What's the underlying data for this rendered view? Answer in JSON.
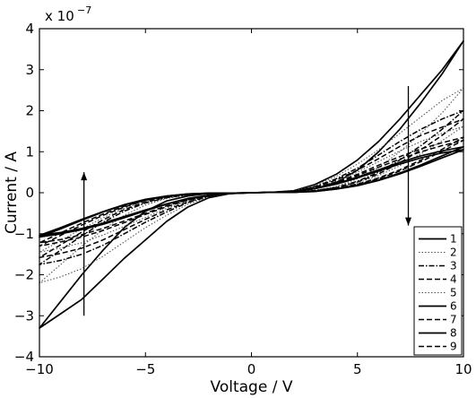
{
  "chart_data": {
    "type": "line",
    "title": "",
    "xlabel": "Voltage / V",
    "ylabel": "Current / A",
    "scale_base": "x 10",
    "scale_exponent": "−7",
    "xlim": [
      -10,
      10
    ],
    "ylim": [
      -4,
      4
    ],
    "xticks": [
      -10,
      -5,
      0,
      5,
      10
    ],
    "yticks": [
      -4,
      -3,
      -2,
      -1,
      0,
      1,
      2,
      3,
      4
    ],
    "xtick_labels": [
      "−10",
      "−5",
      "0",
      "5",
      "10"
    ],
    "ytick_labels": [
      "−4",
      "−3",
      "−2",
      "−1",
      "0",
      "1",
      "2",
      "3",
      "4"
    ],
    "grid": false,
    "legend_position": "bottom-right",
    "arrows": [
      {
        "x": 7.4,
        "y_from": 2.6,
        "y_to": -0.8,
        "direction": "down"
      },
      {
        "x": -7.9,
        "y_from": -3.0,
        "y_to": 0.5,
        "direction": "up"
      }
    ],
    "series": [
      {
        "name": "1",
        "style": "solid",
        "xpos": [
          0,
          1,
          2,
          3,
          4,
          5,
          6,
          7,
          8,
          9,
          10
        ],
        "xrev": [
          10,
          9,
          8,
          7,
          6,
          5,
          4,
          3,
          2,
          1,
          0
        ],
        "up": [
          0.0,
          0.01,
          0.05,
          0.2,
          0.45,
          0.8,
          1.25,
          1.8,
          2.4,
          3.0,
          3.7
        ],
        "down": [
          3.7,
          2.9,
          2.2,
          1.55,
          1.0,
          0.55,
          0.25,
          0.1,
          0.03,
          0.01,
          0.0
        ],
        "xneg": [
          0,
          -1,
          -2,
          -3,
          -4,
          -5,
          -6,
          -7,
          -8,
          -9,
          -10
        ],
        "xnegrev": [
          -10,
          -9,
          -8,
          -7,
          -6,
          -5,
          -4,
          -3,
          -2,
          -1,
          0
        ],
        "nup": [
          0.0,
          -0.02,
          -0.12,
          -0.35,
          -0.7,
          -1.15,
          -1.6,
          -2.1,
          -2.6,
          -2.95,
          -3.3
        ],
        "ndown": [
          -3.3,
          -2.65,
          -2.0,
          -1.4,
          -0.85,
          -0.45,
          -0.2,
          -0.08,
          -0.02,
          -0.01,
          0.0
        ]
      },
      {
        "name": "2",
        "style": "dotted",
        "xpos": [
          0,
          1,
          2,
          3,
          4,
          5,
          6,
          7,
          8,
          9,
          10
        ],
        "xrev": [
          10,
          9,
          8,
          7,
          6,
          5,
          4,
          3,
          2,
          1,
          0
        ],
        "up": [
          0.0,
          0.01,
          0.05,
          0.18,
          0.4,
          0.7,
          1.05,
          1.45,
          1.85,
          2.25,
          2.55
        ],
        "down": [
          2.55,
          1.95,
          1.45,
          1.0,
          0.62,
          0.34,
          0.15,
          0.06,
          0.02,
          0.01,
          0.0
        ],
        "xneg": [
          0,
          -1,
          -2,
          -3,
          -4,
          -5,
          -6,
          -7,
          -8,
          -9,
          -10
        ],
        "xnegrev": [
          -10,
          -9,
          -8,
          -7,
          -6,
          -5,
          -4,
          -3,
          -2,
          -1,
          0
        ],
        "nup": [
          0.0,
          -0.02,
          -0.1,
          -0.28,
          -0.55,
          -0.85,
          -1.2,
          -1.55,
          -1.85,
          -2.05,
          -2.2
        ],
        "ndown": [
          -2.2,
          -1.75,
          -1.3,
          -0.9,
          -0.55,
          -0.3,
          -0.14,
          -0.06,
          -0.02,
          -0.01,
          0.0
        ]
      },
      {
        "name": "3",
        "style": "dashdot",
        "xpos": [
          0,
          1,
          2,
          3,
          4,
          5,
          6,
          7,
          8,
          9,
          10
        ],
        "xrev": [
          10,
          9,
          8,
          7,
          6,
          5,
          4,
          3,
          2,
          1,
          0
        ],
        "up": [
          0.0,
          0.01,
          0.04,
          0.15,
          0.34,
          0.6,
          0.92,
          1.25,
          1.55,
          1.8,
          2.0
        ],
        "down": [
          2.0,
          1.55,
          1.15,
          0.8,
          0.5,
          0.28,
          0.13,
          0.05,
          0.02,
          0.01,
          0.0
        ],
        "xneg": [
          0,
          -1,
          -2,
          -3,
          -4,
          -5,
          -6,
          -7,
          -8,
          -9,
          -10
        ],
        "xnegrev": [
          -10,
          -9,
          -8,
          -7,
          -6,
          -5,
          -4,
          -3,
          -2,
          -1,
          0
        ],
        "nup": [
          0.0,
          -0.02,
          -0.09,
          -0.24,
          -0.47,
          -0.72,
          -1.0,
          -1.28,
          -1.5,
          -1.65,
          -1.75
        ],
        "ndown": [
          -1.75,
          -1.4,
          -1.05,
          -0.72,
          -0.45,
          -0.25,
          -0.12,
          -0.05,
          -0.02,
          -0.01,
          0.0
        ]
      },
      {
        "name": "4",
        "style": "dashed",
        "xpos": [
          0,
          1,
          2,
          3,
          4,
          5,
          6,
          7,
          8,
          9,
          10
        ],
        "xrev": [
          10,
          9,
          8,
          7,
          6,
          5,
          4,
          3,
          2,
          1,
          0
        ],
        "up": [
          0.0,
          0.01,
          0.04,
          0.14,
          0.31,
          0.55,
          0.83,
          1.13,
          1.4,
          1.6,
          1.8
        ],
        "down": [
          1.8,
          1.4,
          1.05,
          0.73,
          0.46,
          0.26,
          0.12,
          0.05,
          0.02,
          0.01,
          0.0
        ],
        "xneg": [
          0,
          -1,
          -2,
          -3,
          -4,
          -5,
          -6,
          -7,
          -8,
          -9,
          -10
        ],
        "xnegrev": [
          -10,
          -9,
          -8,
          -7,
          -6,
          -5,
          -4,
          -3,
          -2,
          -1,
          0
        ],
        "nup": [
          0.0,
          -0.02,
          -0.08,
          -0.22,
          -0.42,
          -0.65,
          -0.9,
          -1.15,
          -1.35,
          -1.48,
          -1.58
        ],
        "ndown": [
          -1.58,
          -1.27,
          -0.96,
          -0.66,
          -0.41,
          -0.23,
          -0.11,
          -0.05,
          -0.02,
          -0.01,
          0.0
        ]
      },
      {
        "name": "5",
        "style": "dotted",
        "xpos": [
          0,
          1,
          2,
          3,
          4,
          5,
          6,
          7,
          8,
          9,
          10
        ],
        "xrev": [
          10,
          9,
          8,
          7,
          6,
          5,
          4,
          3,
          2,
          1,
          0
        ],
        "up": [
          0.0,
          0.01,
          0.04,
          0.13,
          0.28,
          0.5,
          0.76,
          1.02,
          1.25,
          1.45,
          1.62
        ],
        "down": [
          1.62,
          1.27,
          0.95,
          0.66,
          0.42,
          0.24,
          0.11,
          0.04,
          0.02,
          0.01,
          0.0
        ],
        "xneg": [
          0,
          -1,
          -2,
          -3,
          -4,
          -5,
          -6,
          -7,
          -8,
          -9,
          -10
        ],
        "xnegrev": [
          -10,
          -9,
          -8,
          -7,
          -6,
          -5,
          -4,
          -3,
          -2,
          -1,
          0
        ],
        "nup": [
          0.0,
          -0.02,
          -0.08,
          -0.2,
          -0.38,
          -0.6,
          -0.82,
          -1.03,
          -1.22,
          -1.35,
          -1.45
        ],
        "ndown": [
          -1.45,
          -1.17,
          -0.88,
          -0.61,
          -0.38,
          -0.21,
          -0.1,
          -0.04,
          -0.02,
          -0.01,
          0.0
        ]
      },
      {
        "name": "6",
        "style": "solid",
        "xpos": [
          0,
          1,
          2,
          3,
          4,
          5,
          6,
          7,
          8,
          9,
          10
        ],
        "xrev": [
          10,
          9,
          8,
          7,
          6,
          5,
          4,
          3,
          2,
          1,
          0
        ],
        "up": [
          0.0,
          0.01,
          0.03,
          0.1,
          0.22,
          0.38,
          0.56,
          0.74,
          0.9,
          1.02,
          1.12
        ],
        "down": [
          1.12,
          0.9,
          0.68,
          0.48,
          0.31,
          0.18,
          0.09,
          0.04,
          0.01,
          0.01,
          0.0
        ],
        "xneg": [
          0,
          -1,
          -2,
          -3,
          -4,
          -5,
          -6,
          -7,
          -8,
          -9,
          -10
        ],
        "xnegrev": [
          -10,
          -9,
          -8,
          -7,
          -6,
          -5,
          -4,
          -3,
          -2,
          -1,
          0
        ],
        "nup": [
          0.0,
          -0.02,
          -0.06,
          -0.15,
          -0.28,
          -0.44,
          -0.61,
          -0.77,
          -0.9,
          -1.0,
          -1.08
        ],
        "ndown": [
          -1.08,
          -0.88,
          -0.67,
          -0.47,
          -0.3,
          -0.17,
          -0.08,
          -0.03,
          -0.01,
          -0.01,
          0.0
        ]
      },
      {
        "name": "7",
        "style": "dashed",
        "xpos": [
          0,
          1,
          2,
          3,
          4,
          5,
          6,
          7,
          8,
          9,
          10
        ],
        "xrev": [
          10,
          9,
          8,
          7,
          6,
          5,
          4,
          3,
          2,
          1,
          0
        ],
        "up": [
          0.0,
          0.01,
          0.03,
          0.11,
          0.24,
          0.42,
          0.62,
          0.82,
          1.0,
          1.15,
          1.28
        ],
        "down": [
          1.28,
          1.01,
          0.76,
          0.53,
          0.34,
          0.2,
          0.1,
          0.04,
          0.01,
          0.01,
          0.0
        ],
        "xneg": [
          0,
          -1,
          -2,
          -3,
          -4,
          -5,
          -6,
          -7,
          -8,
          -9,
          -10
        ],
        "xnegrev": [
          -10,
          -9,
          -8,
          -7,
          -6,
          -5,
          -4,
          -3,
          -2,
          -1,
          0
        ],
        "nup": [
          0.0,
          -0.02,
          -0.07,
          -0.17,
          -0.32,
          -0.5,
          -0.69,
          -0.87,
          -1.02,
          -1.14,
          -1.22
        ],
        "ndown": [
          -1.22,
          -0.98,
          -0.74,
          -0.52,
          -0.33,
          -0.18,
          -0.09,
          -0.04,
          -0.01,
          -0.01,
          0.0
        ]
      },
      {
        "name": "8",
        "style": "solid",
        "xpos": [
          0,
          1,
          2,
          3,
          4,
          5,
          6,
          7,
          8,
          9,
          10
        ],
        "xrev": [
          10,
          9,
          8,
          7,
          6,
          5,
          4,
          3,
          2,
          1,
          0
        ],
        "up": [
          0.0,
          0.01,
          0.03,
          0.1,
          0.21,
          0.36,
          0.53,
          0.7,
          0.85,
          0.97,
          1.05
        ],
        "down": [
          1.05,
          0.85,
          0.65,
          0.46,
          0.3,
          0.17,
          0.09,
          0.03,
          0.01,
          0.01,
          0.0
        ],
        "xneg": [
          0,
          -1,
          -2,
          -3,
          -4,
          -5,
          -6,
          -7,
          -8,
          -9,
          -10
        ],
        "xnegrev": [
          -10,
          -9,
          -8,
          -7,
          -6,
          -5,
          -4,
          -3,
          -2,
          -1,
          0
        ],
        "nup": [
          0.0,
          -0.02,
          -0.06,
          -0.14,
          -0.27,
          -0.42,
          -0.58,
          -0.74,
          -0.87,
          -0.97,
          -1.04
        ],
        "ndown": [
          -1.04,
          -0.85,
          -0.65,
          -0.46,
          -0.29,
          -0.16,
          -0.08,
          -0.03,
          -0.01,
          -0.01,
          0.0
        ]
      },
      {
        "name": "9",
        "style": "dashed",
        "xpos": [
          0,
          1,
          2,
          3,
          4,
          5,
          6,
          7,
          8,
          9,
          10
        ],
        "xrev": [
          10,
          9,
          8,
          7,
          6,
          5,
          4,
          3,
          2,
          1,
          0
        ],
        "up": [
          0.0,
          0.01,
          0.03,
          0.12,
          0.26,
          0.45,
          0.67,
          0.88,
          1.07,
          1.22,
          1.35
        ],
        "down": [
          1.35,
          1.06,
          0.8,
          0.56,
          0.36,
          0.21,
          0.1,
          0.04,
          0.01,
          0.01,
          0.0
        ],
        "xneg": [
          0,
          -1,
          -2,
          -3,
          -4,
          -5,
          -6,
          -7,
          -8,
          -9,
          -10
        ],
        "xnegrev": [
          -10,
          -9,
          -8,
          -7,
          -6,
          -5,
          -4,
          -3,
          -2,
          -1,
          0
        ],
        "nup": [
          0.0,
          -0.02,
          -0.07,
          -0.18,
          -0.34,
          -0.53,
          -0.73,
          -0.92,
          -1.08,
          -1.2,
          -1.3
        ],
        "ndown": [
          -1.3,
          -1.04,
          -0.79,
          -0.55,
          -0.35,
          -0.19,
          -0.09,
          -0.04,
          -0.01,
          -0.01,
          0.0
        ]
      }
    ]
  }
}
